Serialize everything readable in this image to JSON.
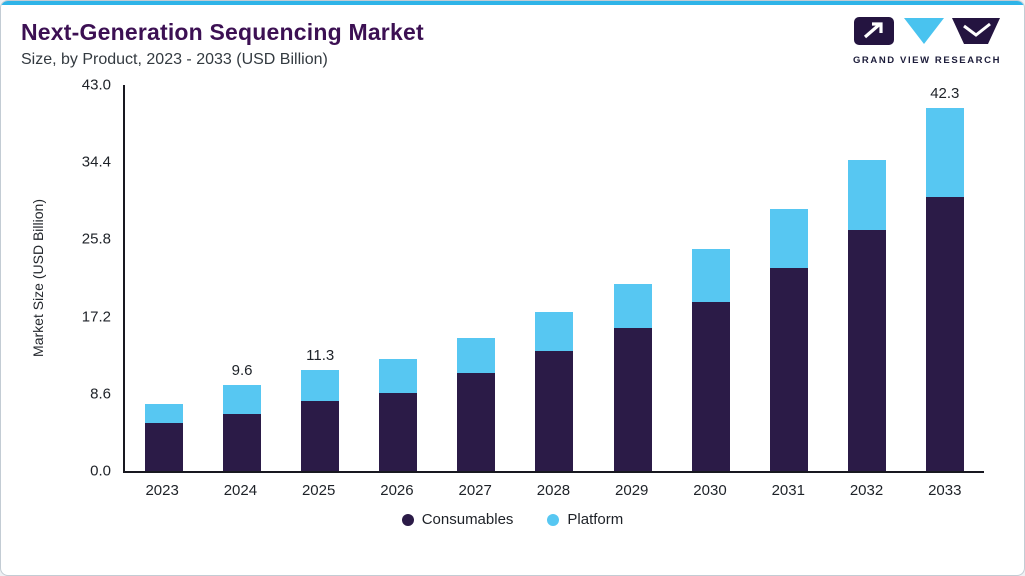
{
  "header": {
    "title": "Next-Generation Sequencing Market",
    "subtitle": "Size, by Product, 2023 - 2033 (USD Billion)",
    "logo_text": "GRAND VIEW RESEARCH"
  },
  "chart_data": {
    "type": "bar",
    "stacked": true,
    "title": "Next-Generation Sequencing Market",
    "subtitle": "Size, by Product, 2023 - 2033 (USD Billion)",
    "xlabel": "",
    "ylabel": "Market Size (USD Billion)",
    "categories": [
      "2023",
      "2024",
      "2025",
      "2026",
      "2027",
      "2028",
      "2029",
      "2030",
      "2031",
      "2032",
      "2033"
    ],
    "series": [
      {
        "name": "Consumables",
        "color": "#2B1B47",
        "values": [
          5.3,
          6.4,
          7.8,
          8.7,
          10.9,
          13.4,
          15.9,
          18.8,
          22.6,
          26.9,
          31.9
        ]
      },
      {
        "name": "Platform",
        "color": "#57C7F2",
        "values": [
          2.2,
          3.2,
          3.5,
          3.8,
          3.9,
          4.3,
          4.9,
          5.9,
          6.6,
          7.8,
          10.4
        ]
      }
    ],
    "totals": [
      7.5,
      9.6,
      11.3,
      12.5,
      14.8,
      17.7,
      20.8,
      24.7,
      29.2,
      34.7,
      42.3
    ],
    "point_labels": [
      null,
      "9.6",
      "11.3",
      null,
      null,
      null,
      null,
      null,
      null,
      null,
      "42.3"
    ],
    "yticks": [
      0.0,
      8.6,
      17.2,
      25.8,
      34.4,
      43.0
    ],
    "ylim": [
      0,
      43
    ],
    "grid": false,
    "legend_position": "bottom"
  },
  "colors": {
    "accent_top_bar": "#2FB4E8",
    "title_text": "#3C1053",
    "axis": "#181820",
    "consumables": "#2B1B47",
    "platform": "#57C7F2"
  }
}
